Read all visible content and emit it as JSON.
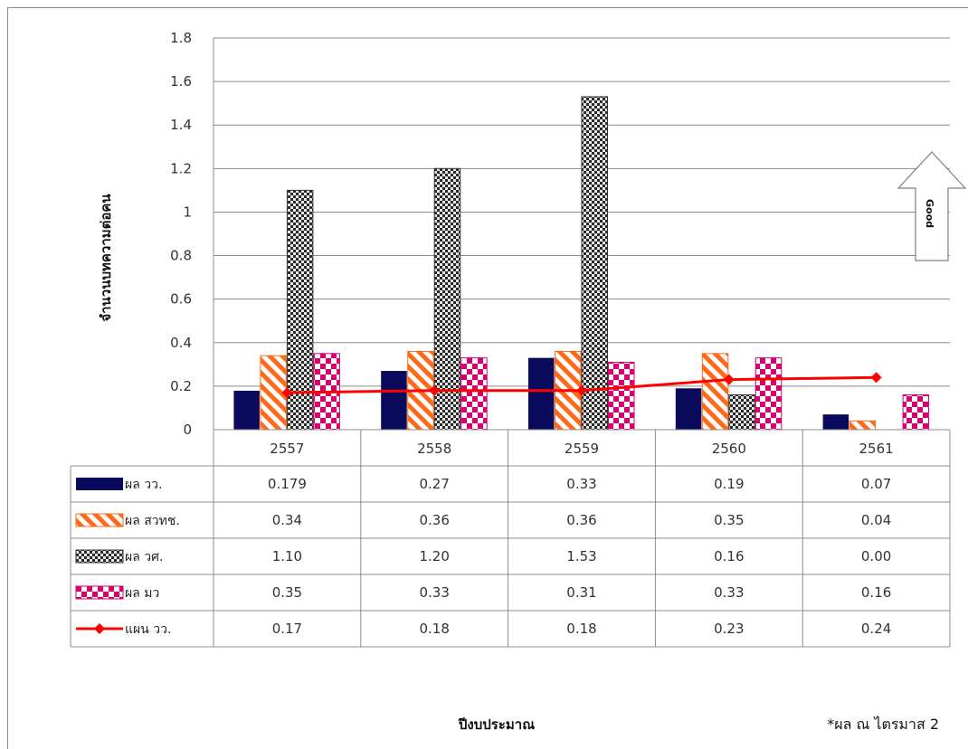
{
  "chart_data": {
    "type": "bar",
    "categories": [
      "2557",
      "2558",
      "2559",
      "2560",
      "2561"
    ],
    "ylim": [
      0,
      1.8
    ],
    "yticks": [
      "0",
      "0.2",
      "0.4",
      "0.6",
      "0.8",
      "1",
      "1.2",
      "1.4",
      "1.6",
      "1.8"
    ],
    "ylabel": "จำนวนบทความต่อคน",
    "xlabel": "ปีงบประมาณ",
    "grid": true,
    "legend": "data-table",
    "series": [
      {
        "name": "ผล วว.",
        "kind": "bar",
        "color": "#0a0a5c",
        "pattern": "solid",
        "values": [
          0.179,
          0.27,
          0.33,
          0.19,
          0.07
        ],
        "labels": [
          "0.179",
          "0.27",
          "0.33",
          "0.19",
          "0.07"
        ]
      },
      {
        "name": "ผล สวทช.",
        "kind": "bar",
        "color": "#ff6a1a",
        "pattern": "diagonal-stripes",
        "values": [
          0.34,
          0.36,
          0.36,
          0.35,
          0.04
        ],
        "labels": [
          "0.34",
          "0.36",
          "0.36",
          "0.35",
          "0.04"
        ]
      },
      {
        "name": "ผล วศ.",
        "kind": "bar",
        "color": "#333333",
        "pattern": "checker",
        "values": [
          1.1,
          1.2,
          1.53,
          0.16,
          0.0
        ],
        "labels": [
          "1.10",
          "1.20",
          "1.53",
          "0.16",
          "0.00"
        ]
      },
      {
        "name": "ผล มว",
        "kind": "bar",
        "color": "#d6006e",
        "pattern": "large-checker",
        "values": [
          0.35,
          0.33,
          0.31,
          0.33,
          0.16
        ],
        "labels": [
          "0.35",
          "0.33",
          "0.31",
          "0.33",
          "0.16"
        ]
      },
      {
        "name": "แผน วว.",
        "kind": "line",
        "color": "#ff0000",
        "marker": "diamond",
        "values": [
          0.17,
          0.18,
          0.18,
          0.23,
          0.24
        ],
        "labels": [
          "0.17",
          "0.18",
          "0.18",
          "0.23",
          "0.24"
        ]
      }
    ],
    "annotations": {
      "arrow_label": "Good",
      "footnote": "*ผล ณ ไตรมาส 2"
    }
  }
}
